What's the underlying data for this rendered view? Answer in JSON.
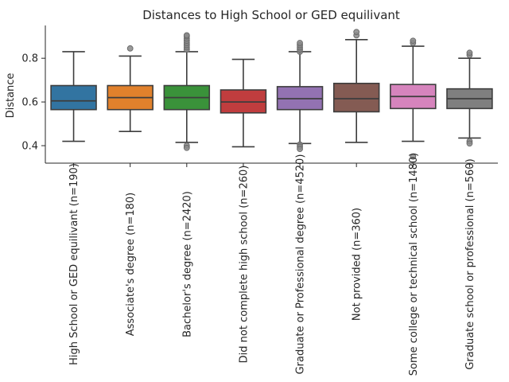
{
  "chart_data": {
    "type": "box",
    "title": "Distances to High School or GED equilivant",
    "xlabel": "",
    "ylabel": "Distance",
    "ylim": [
      0.32,
      0.95
    ],
    "yticks": [
      0.4,
      0.6,
      0.8
    ],
    "ytick_labels": [
      "0.4",
      "0.6",
      "0.8"
    ],
    "grid": false,
    "legend": "none",
    "categories": [
      "High School or GED equilivant (n=190)",
      "Associate's degree (n=180)",
      "Bachelor's degree (n=2420)",
      "Did not complete high school (n=260)",
      "Graduate or Professional degree (n=4520)",
      "Not provided (n=360)",
      "Some college or technical school (n=1480)",
      "Graduate school or professional (n=560)"
    ],
    "colors": [
      "#3274a1",
      "#e1812c",
      "#3a923a",
      "#c03d3e",
      "#9372b2",
      "#845b53",
      "#d684bd",
      "#7f7f7f"
    ],
    "boxes": [
      {
        "whislo": 0.42,
        "q1": 0.565,
        "med": 0.605,
        "q3": 0.675,
        "whishi": 0.83,
        "fliers": []
      },
      {
        "whislo": 0.465,
        "q1": 0.565,
        "med": 0.62,
        "q3": 0.675,
        "whishi": 0.81,
        "fliers": [
          0.845
        ]
      },
      {
        "whislo": 0.415,
        "q1": 0.565,
        "med": 0.62,
        "q3": 0.675,
        "whishi": 0.83,
        "fliers": [
          0.84,
          0.85,
          0.86,
          0.87,
          0.88,
          0.89,
          0.9,
          0.905,
          0.4,
          0.39
        ]
      },
      {
        "whislo": 0.395,
        "q1": 0.55,
        "med": 0.6,
        "q3": 0.655,
        "whishi": 0.795,
        "fliers": []
      },
      {
        "whislo": 0.41,
        "q1": 0.565,
        "med": 0.615,
        "q3": 0.67,
        "whishi": 0.83,
        "fliers": [
          0.83,
          0.84,
          0.85,
          0.86,
          0.87,
          0.405,
          0.395,
          0.385
        ]
      },
      {
        "whislo": 0.415,
        "q1": 0.555,
        "med": 0.615,
        "q3": 0.685,
        "whishi": 0.885,
        "fliers": [
          0.905,
          0.92
        ]
      },
      {
        "whislo": 0.42,
        "q1": 0.57,
        "med": 0.625,
        "q3": 0.68,
        "whishi": 0.855,
        "fliers": [
          0.87,
          0.88,
          0.35
        ]
      },
      {
        "whislo": 0.435,
        "q1": 0.57,
        "med": 0.615,
        "q3": 0.66,
        "whishi": 0.8,
        "fliers": [
          0.815,
          0.825,
          0.42,
          0.41
        ]
      }
    ]
  }
}
